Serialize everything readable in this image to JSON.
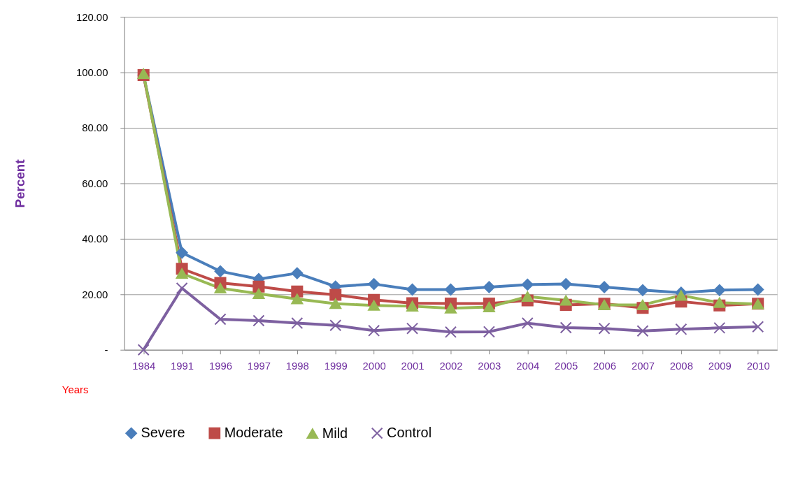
{
  "chart_data": {
    "type": "line",
    "xlabel": "Years",
    "ylabel": "Percent",
    "categories": [
      "1984",
      "1991",
      "1996",
      "1997",
      "1998",
      "1999",
      "2000",
      "2001",
      "2002",
      "2003",
      "2004",
      "2005",
      "2006",
      "2007",
      "2008",
      "2009",
      "2010"
    ],
    "series": [
      {
        "name": "Severe",
        "color": "#4a7ebb",
        "marker": "diamond",
        "values": [
          99,
          35,
          28.3,
          25.5,
          27.6,
          22.8,
          23.7,
          21.7,
          21.7,
          22.6,
          23.5,
          23.7,
          22.6,
          21.5,
          20.6,
          21.5,
          21.7
        ]
      },
      {
        "name": "Moderate",
        "color": "#be4b48",
        "marker": "square",
        "values": [
          99,
          29.2,
          24.1,
          22.8,
          21,
          19.8,
          18,
          16.8,
          16.7,
          16.7,
          17.8,
          16.2,
          16.6,
          15.1,
          17.4,
          16,
          16.6
        ]
      },
      {
        "name": "Mild",
        "color": "#98b954",
        "marker": "triangle",
        "values": [
          99.5,
          27.5,
          22.2,
          20.2,
          18.3,
          16.6,
          16,
          15.7,
          15,
          15.4,
          19.2,
          17.8,
          16.2,
          16.2,
          19.6,
          17,
          16.5
        ]
      },
      {
        "name": "Control",
        "color": "#7d60a0",
        "marker": "cross",
        "values": [
          0,
          22.2,
          11,
          10.5,
          9.6,
          8.8,
          6.9,
          7.7,
          6.4,
          6.5,
          9.6,
          8,
          7.7,
          6.8,
          7.4,
          7.9,
          8.3
        ]
      }
    ],
    "ylim": [
      0,
      120
    ],
    "yticks": [
      {
        "value": 0,
        "label": "-"
      },
      {
        "value": 20,
        "label": "20.00"
      },
      {
        "value": 40,
        "label": "40.00"
      },
      {
        "value": 60,
        "label": "60.00"
      },
      {
        "value": 80,
        "label": "80.00"
      },
      {
        "value": 100,
        "label": "100.00"
      },
      {
        "value": 120,
        "label": "120.00"
      }
    ],
    "grid": "y",
    "legend": "bottom",
    "line_style": "solid"
  }
}
